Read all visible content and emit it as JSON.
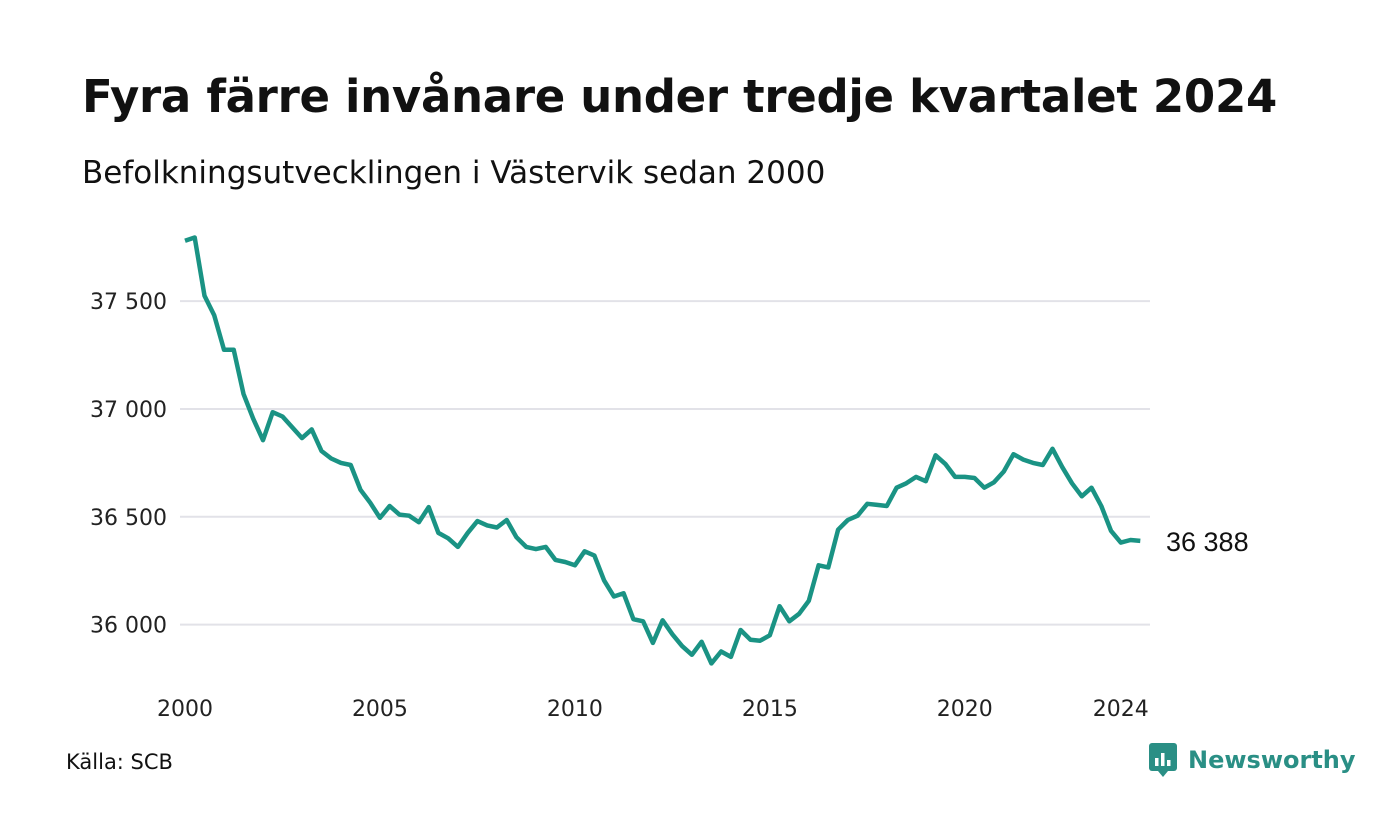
{
  "header": {
    "title": "Fyra färre invånare under tredje kvartalet 2024",
    "subtitle": "Befolkningsutvecklingen i Västervik sedan 2000"
  },
  "footer": {
    "source": "Källa: SCB",
    "brand": "Newsworthy"
  },
  "colors": {
    "line": "#1a9384",
    "grid": "#e2e2e8",
    "brand": "#2a8f85"
  },
  "chart_data": {
    "type": "line",
    "title": "Fyra färre invånare under tredje kvartalet 2024",
    "subtitle": "Befolkningsutvecklingen i Västervik sedan 2000",
    "xlabel": "",
    "ylabel": "",
    "xlim": [
      2000,
      2024.75
    ],
    "ylim": [
      35780,
      37830
    ],
    "x_ticks": [
      2000,
      2005,
      2010,
      2015,
      2020,
      2024
    ],
    "x_tick_labels": [
      "2000",
      "2005",
      "2010",
      "2015",
      "2020",
      "2024"
    ],
    "y_ticks": [
      36000,
      36500,
      37000,
      37500
    ],
    "y_tick_labels": [
      "36 000",
      "36 500",
      "37 000",
      "37 500"
    ],
    "grid": "horizontal",
    "legend": "none",
    "end_label": "36 388",
    "series": [
      {
        "x": [
          2000.0,
          2000.25,
          2000.5,
          2000.75,
          2001.0,
          2001.25,
          2001.5,
          2001.75,
          2002.0,
          2002.25,
          2002.5,
          2002.75,
          2003.0,
          2003.25,
          2003.5,
          2003.75,
          2004.0,
          2004.25,
          2004.5,
          2004.75,
          2005.0,
          2005.25,
          2005.5,
          2005.75,
          2006.0,
          2006.25,
          2006.5,
          2006.75,
          2007.0,
          2007.25,
          2007.5,
          2007.75,
          2008.0,
          2008.25,
          2008.5,
          2008.75,
          2009.0,
          2009.25,
          2009.5,
          2009.75,
          2010.0,
          2010.25,
          2010.5,
          2010.75,
          2011.0,
          2011.25,
          2011.5,
          2011.75,
          2012.0,
          2012.25,
          2012.5,
          2012.75,
          2013.0,
          2013.25,
          2013.5,
          2013.75,
          2014.0,
          2014.25,
          2014.5,
          2014.75,
          2015.0,
          2015.25,
          2015.5,
          2015.75,
          2016.0,
          2016.25,
          2016.5,
          2016.75,
          2017.0,
          2017.25,
          2017.5,
          2017.75,
          2018.0,
          2018.25,
          2018.5,
          2018.75,
          2019.0,
          2019.25,
          2019.5,
          2019.75,
          2020.0,
          2020.25,
          2020.5,
          2020.75,
          2021.0,
          2021.25,
          2021.5,
          2021.75,
          2022.0,
          2022.25,
          2022.5,
          2022.75,
          2023.0,
          2023.25,
          2023.5,
          2023.75,
          2024.0,
          2024.25,
          2024.5
        ],
        "values": [
          37780,
          37795,
          37525,
          37435,
          37275,
          37275,
          37070,
          36955,
          36855,
          36985,
          36965,
          36915,
          36865,
          36905,
          36805,
          36770,
          36750,
          36740,
          36625,
          36565,
          36495,
          36550,
          36510,
          36505,
          36475,
          36545,
          36425,
          36400,
          36360,
          36425,
          36480,
          36460,
          36450,
          36485,
          36405,
          36360,
          36350,
          36360,
          36300,
          36290,
          36275,
          36340,
          36320,
          36205,
          36130,
          36145,
          36025,
          36015,
          35915,
          36020,
          35955,
          35900,
          35860,
          35920,
          35820,
          35875,
          35850,
          35975,
          35930,
          35925,
          35950,
          36085,
          36015,
          36050,
          36110,
          36275,
          36265,
          36440,
          36485,
          36505,
          36560,
          36555,
          36550,
          36635,
          36655,
          36685,
          36665,
          36785,
          36745,
          36685,
          36685,
          36680,
          36635,
          36660,
          36710,
          36790,
          36765,
          36750,
          36740,
          36815,
          36730,
          36655,
          36595,
          36635,
          36550,
          36435,
          36380,
          36392,
          36388
        ]
      }
    ]
  }
}
